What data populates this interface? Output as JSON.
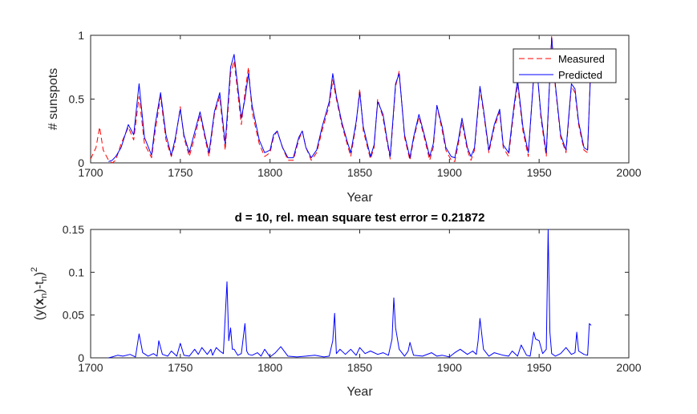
{
  "chart_data": [
    {
      "type": "line",
      "title": "",
      "xlabel": "Year",
      "ylabel": "# sunspots",
      "xlim": [
        1700,
        2000
      ],
      "ylim": [
        0,
        1
      ],
      "xticks": [
        "1700",
        "1750",
        "1800",
        "1850",
        "1900",
        "1950",
        "2000"
      ],
      "yticks": [
        "0",
        "0.5",
        "1"
      ],
      "grid": false,
      "legend": "top-right",
      "series": [
        {
          "name": "Measured",
          "style": "dashed",
          "color": "#ff0000",
          "x": [
            1700,
            1703,
            1705,
            1707,
            1710,
            1712,
            1714,
            1717,
            1721,
            1724,
            1727,
            1730,
            1734,
            1736,
            1739,
            1742,
            1745,
            1747,
            1750,
            1752,
            1755,
            1758,
            1761,
            1764,
            1766,
            1769,
            1772,
            1775,
            1778,
            1780,
            1784,
            1786,
            1788,
            1790,
            1794,
            1797,
            1800,
            1802,
            1804,
            1807,
            1810,
            1813,
            1816,
            1818,
            1820,
            1823,
            1826,
            1829,
            1833,
            1835,
            1837,
            1840,
            1843,
            1845,
            1848,
            1850,
            1852,
            1856,
            1858,
            1860,
            1863,
            1865,
            1867,
            1870,
            1872,
            1875,
            1878,
            1880,
            1883,
            1886,
            1889,
            1891,
            1893,
            1896,
            1898,
            1901,
            1903,
            1905,
            1907,
            1910,
            1912,
            1914,
            1917,
            1919,
            1922,
            1925,
            1928,
            1930,
            1933,
            1936,
            1938,
            1941,
            1944,
            1947,
            1949,
            1951,
            1954,
            1957,
            1959,
            1962,
            1965,
            1968,
            1970,
            1972,
            1975,
            1977,
            1979
          ],
          "y": [
            0.03,
            0.12,
            0.28,
            0.1,
            0.02,
            0.0,
            0.02,
            0.15,
            0.28,
            0.18,
            0.52,
            0.15,
            0.04,
            0.25,
            0.52,
            0.18,
            0.05,
            0.15,
            0.44,
            0.2,
            0.05,
            0.2,
            0.38,
            0.18,
            0.05,
            0.38,
            0.52,
            0.1,
            0.7,
            0.8,
            0.3,
            0.55,
            0.75,
            0.4,
            0.15,
            0.05,
            0.08,
            0.2,
            0.25,
            0.12,
            0.02,
            0.02,
            0.18,
            0.25,
            0.12,
            0.02,
            0.08,
            0.25,
            0.45,
            0.65,
            0.5,
            0.3,
            0.15,
            0.05,
            0.3,
            0.58,
            0.25,
            0.03,
            0.12,
            0.5,
            0.35,
            0.18,
            0.03,
            0.6,
            0.72,
            0.2,
            0.02,
            0.18,
            0.36,
            0.2,
            0.02,
            0.12,
            0.45,
            0.25,
            0.1,
            0.02,
            0.01,
            0.15,
            0.32,
            0.1,
            0.02,
            0.1,
            0.58,
            0.4,
            0.08,
            0.28,
            0.4,
            0.12,
            0.05,
            0.42,
            0.62,
            0.25,
            0.05,
            0.7,
            0.72,
            0.35,
            0.05,
            1.0,
            0.6,
            0.2,
            0.08,
            0.6,
            0.55,
            0.3,
            0.1,
            0.08,
            0.85
          ]
        },
        {
          "name": "Predicted",
          "style": "solid",
          "color": "#0000ff",
          "x": [
            1710,
            1712,
            1714,
            1717,
            1721,
            1724,
            1727,
            1730,
            1734,
            1736,
            1739,
            1742,
            1745,
            1747,
            1750,
            1752,
            1755,
            1758,
            1761,
            1764,
            1766,
            1769,
            1772,
            1775,
            1778,
            1780,
            1784,
            1786,
            1788,
            1790,
            1794,
            1797,
            1800,
            1802,
            1804,
            1807,
            1810,
            1813,
            1816,
            1818,
            1820,
            1823,
            1826,
            1829,
            1833,
            1835,
            1837,
            1840,
            1843,
            1845,
            1848,
            1850,
            1852,
            1856,
            1858,
            1860,
            1863,
            1865,
            1867,
            1870,
            1872,
            1875,
            1878,
            1880,
            1883,
            1886,
            1889,
            1891,
            1893,
            1896,
            1898,
            1901,
            1903,
            1905,
            1907,
            1910,
            1912,
            1914,
            1917,
            1919,
            1922,
            1925,
            1928,
            1930,
            1933,
            1936,
            1938,
            1941,
            1944,
            1947,
            1949,
            1951,
            1954,
            1957,
            1959,
            1962,
            1965,
            1968,
            1970,
            1972,
            1975,
            1977,
            1979
          ],
          "y": [
            0.01,
            0.02,
            0.05,
            0.12,
            0.3,
            0.22,
            0.62,
            0.2,
            0.06,
            0.3,
            0.55,
            0.22,
            0.06,
            0.18,
            0.42,
            0.22,
            0.08,
            0.24,
            0.4,
            0.2,
            0.08,
            0.4,
            0.55,
            0.15,
            0.75,
            0.85,
            0.35,
            0.5,
            0.7,
            0.45,
            0.18,
            0.08,
            0.1,
            0.22,
            0.25,
            0.12,
            0.04,
            0.04,
            0.2,
            0.25,
            0.12,
            0.04,
            0.1,
            0.28,
            0.48,
            0.7,
            0.52,
            0.32,
            0.17,
            0.08,
            0.32,
            0.55,
            0.28,
            0.05,
            0.14,
            0.48,
            0.38,
            0.2,
            0.05,
            0.62,
            0.7,
            0.22,
            0.04,
            0.2,
            0.38,
            0.22,
            0.05,
            0.15,
            0.45,
            0.28,
            0.12,
            0.05,
            0.04,
            0.18,
            0.35,
            0.12,
            0.05,
            0.12,
            0.6,
            0.42,
            0.1,
            0.3,
            0.42,
            0.14,
            0.08,
            0.45,
            0.65,
            0.28,
            0.08,
            0.68,
            0.7,
            0.38,
            0.08,
            0.98,
            0.62,
            0.22,
            0.1,
            0.62,
            0.58,
            0.32,
            0.12,
            0.1,
            0.82
          ]
        }
      ]
    },
    {
      "type": "line",
      "title": "d = 10, rel. mean square test error = 0.21872",
      "xlabel": "Year",
      "ylabel_parts": [
        "(y(",
        "x",
        "n",
        ")-t",
        "n",
        ")",
        "2"
      ],
      "xlim": [
        1700,
        2000
      ],
      "ylim": [
        0,
        0.15
      ],
      "xticks": [
        "1700",
        "1750",
        "1800",
        "1850",
        "1900",
        "1950",
        "2000"
      ],
      "yticks": [
        "0",
        "0.05",
        "0.1",
        "0.15"
      ],
      "grid": false,
      "series": [
        {
          "style": "solid",
          "color": "#0000ff",
          "x": [
            1710,
            1712,
            1715,
            1718,
            1722,
            1725,
            1727,
            1729,
            1732,
            1735,
            1737,
            1738,
            1740,
            1743,
            1745,
            1748,
            1750,
            1752,
            1755,
            1758,
            1760,
            1762,
            1765,
            1767,
            1768,
            1770,
            1772,
            1774,
            1776,
            1777,
            1778,
            1779,
            1780,
            1782,
            1784,
            1786,
            1787,
            1788,
            1790,
            1793,
            1795,
            1797,
            1799,
            1800,
            1803,
            1806,
            1810,
            1815,
            1820,
            1825,
            1830,
            1833,
            1835,
            1836,
            1837,
            1839,
            1842,
            1845,
            1848,
            1850,
            1853,
            1856,
            1860,
            1863,
            1866,
            1868,
            1869,
            1870,
            1872,
            1875,
            1877,
            1878,
            1880,
            1885,
            1890,
            1893,
            1896,
            1900,
            1903,
            1906,
            1910,
            1913,
            1915,
            1916,
            1917,
            1919,
            1922,
            1925,
            1930,
            1933,
            1935,
            1938,
            1940,
            1943,
            1945,
            1947,
            1948,
            1950,
            1952,
            1954,
            1955,
            1956,
            1957,
            1959,
            1962,
            1965,
            1968,
            1970,
            1971,
            1972,
            1975,
            1977,
            1978,
            1979
          ],
          "y": [
            0.0,
            0.001,
            0.003,
            0.002,
            0.004,
            0.001,
            0.028,
            0.006,
            0.002,
            0.005,
            0.002,
            0.02,
            0.004,
            0.002,
            0.008,
            0.002,
            0.017,
            0.003,
            0.002,
            0.01,
            0.004,
            0.012,
            0.004,
            0.01,
            0.003,
            0.012,
            0.008,
            0.005,
            0.089,
            0.02,
            0.035,
            0.01,
            0.01,
            0.003,
            0.005,
            0.04,
            0.008,
            0.004,
            0.003,
            0.006,
            0.002,
            0.01,
            0.004,
            0.001,
            0.006,
            0.013,
            0.002,
            0.001,
            0.002,
            0.003,
            0.001,
            0.002,
            0.02,
            0.052,
            0.005,
            0.01,
            0.004,
            0.01,
            0.003,
            0.012,
            0.005,
            0.008,
            0.004,
            0.006,
            0.003,
            0.022,
            0.07,
            0.035,
            0.01,
            0.002,
            0.008,
            0.018,
            0.003,
            0.002,
            0.006,
            0.002,
            0.003,
            0.001,
            0.006,
            0.01,
            0.004,
            0.008,
            0.004,
            0.02,
            0.046,
            0.01,
            0.002,
            0.006,
            0.003,
            0.002,
            0.008,
            0.002,
            0.015,
            0.003,
            0.002,
            0.03,
            0.022,
            0.02,
            0.005,
            0.01,
            0.15,
            0.03,
            0.005,
            0.002,
            0.005,
            0.012,
            0.004,
            0.006,
            0.03,
            0.008,
            0.004,
            0.003,
            0.04,
            0.038
          ]
        }
      ]
    }
  ]
}
